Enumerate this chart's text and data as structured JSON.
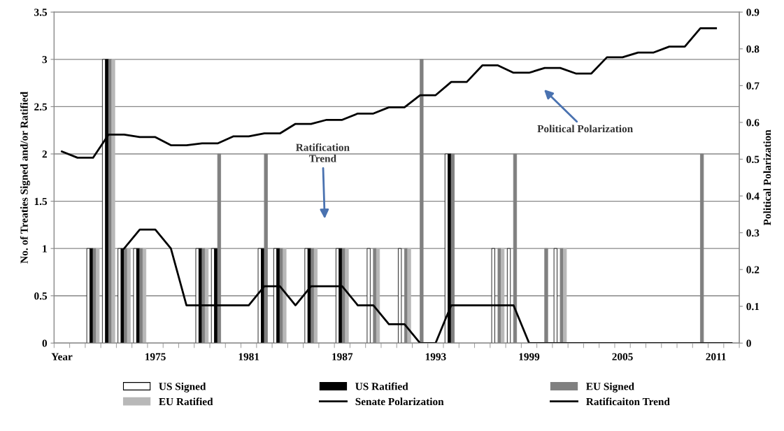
{
  "chart_data": {
    "type": "bar",
    "categories": [
      "Year",
      null,
      null,
      null,
      null,
      null,
      "1975",
      null,
      null,
      null,
      null,
      null,
      "1981",
      null,
      null,
      null,
      null,
      null,
      "1987",
      null,
      null,
      null,
      null,
      null,
      "1993",
      null,
      null,
      null,
      null,
      null,
      "1999",
      null,
      null,
      null,
      null,
      null,
      "2005",
      null,
      null,
      null,
      null,
      null,
      "2011",
      null
    ],
    "ylabel": "No. of Treaties Signed and/or Ratified",
    "y2label": "Political Polarization",
    "ylim": [
      0,
      3.5
    ],
    "yticks": [
      0,
      0.5,
      1,
      1.5,
      2,
      2.5,
      3,
      3.5
    ],
    "y2lim": [
      0,
      0.9
    ],
    "y2ticks": [
      0,
      0.1,
      0.2,
      0.3,
      0.4,
      0.5,
      0.6,
      0.7,
      0.8,
      0.9
    ],
    "grid": "y",
    "legend": "bottom",
    "series": [
      {
        "name": "US Signed",
        "color": "#ffffff",
        "values": [
          0,
          0,
          1,
          3,
          1,
          1,
          0,
          0,
          0,
          1,
          1,
          0,
          0,
          1,
          1,
          0,
          1,
          0,
          1,
          0,
          1,
          0,
          1,
          0,
          0,
          2,
          0,
          0,
          1,
          1,
          0,
          0,
          1,
          0,
          0,
          0,
          0,
          0,
          0,
          0,
          0,
          0,
          0,
          0
        ]
      },
      {
        "name": "US Ratified",
        "color": "#000000",
        "values": [
          0,
          0,
          1,
          3,
          1,
          1,
          0,
          0,
          0,
          1,
          1,
          0,
          0,
          1,
          1,
          0,
          1,
          0,
          1,
          0,
          0,
          0,
          0,
          0,
          0,
          2,
          0,
          0,
          0,
          0,
          0,
          0,
          0,
          0,
          0,
          0,
          0,
          0,
          0,
          0,
          0,
          0,
          0,
          0
        ]
      },
      {
        "name": "EU Signed",
        "color": "#808080",
        "values": [
          0,
          0,
          1,
          3,
          1,
          1,
          0,
          0,
          0,
          1,
          2,
          0,
          0,
          2,
          1,
          0,
          1,
          0,
          1,
          0,
          1,
          0,
          1,
          3,
          0,
          2,
          0,
          0,
          1,
          2,
          0,
          1,
          1,
          0,
          0,
          0,
          0,
          0,
          0,
          0,
          0,
          2,
          0,
          0
        ]
      },
      {
        "name": "EU Ratified",
        "color": "#b8b8b8",
        "values": [
          0,
          0,
          1,
          3,
          1,
          1,
          0,
          0,
          0,
          1,
          0,
          0,
          0,
          0,
          1,
          0,
          1,
          0,
          1,
          0,
          1,
          0,
          1,
          0,
          0,
          0,
          0,
          0,
          1,
          0,
          0,
          0,
          1,
          0,
          0,
          0,
          0,
          0,
          0,
          0,
          0,
          0,
          0,
          0
        ]
      },
      {
        "name": "Senate Polarization",
        "type": "line",
        "axis": "y2",
        "color": "#000000",
        "values": [
          0.521,
          0.504,
          0.504,
          0.567,
          0.567,
          0.56,
          0.56,
          0.538,
          0.538,
          0.543,
          0.543,
          0.562,
          0.562,
          0.57,
          0.57,
          0.596,
          0.596,
          0.607,
          0.607,
          0.624,
          0.624,
          0.641,
          0.641,
          0.674,
          0.674,
          0.71,
          0.71,
          0.755,
          0.755,
          0.735,
          0.735,
          0.748,
          0.748,
          0.733,
          0.733,
          0.777,
          0.777,
          0.79,
          0.79,
          0.806,
          0.806,
          0.856,
          0.856,
          null
        ]
      },
      {
        "name": "Ratificaiton Trend",
        "type": "line",
        "color": "#000000",
        "values": [
          null,
          null,
          null,
          null,
          1,
          1.2,
          1.2,
          1,
          0.4,
          0.4,
          0.4,
          0.4,
          0.4,
          0.6,
          0.6,
          0.4,
          0.6,
          0.6,
          0.6,
          0.4,
          0.4,
          0.2,
          0.2,
          0,
          0,
          0.4,
          0.4,
          0.4,
          0.4,
          0.4,
          0,
          0,
          0,
          0,
          0,
          0,
          0,
          0,
          0,
          0,
          0,
          0,
          0,
          0
        ]
      }
    ],
    "annotations": [
      "Ratification\nTrend",
      "Political Polarization"
    ]
  }
}
